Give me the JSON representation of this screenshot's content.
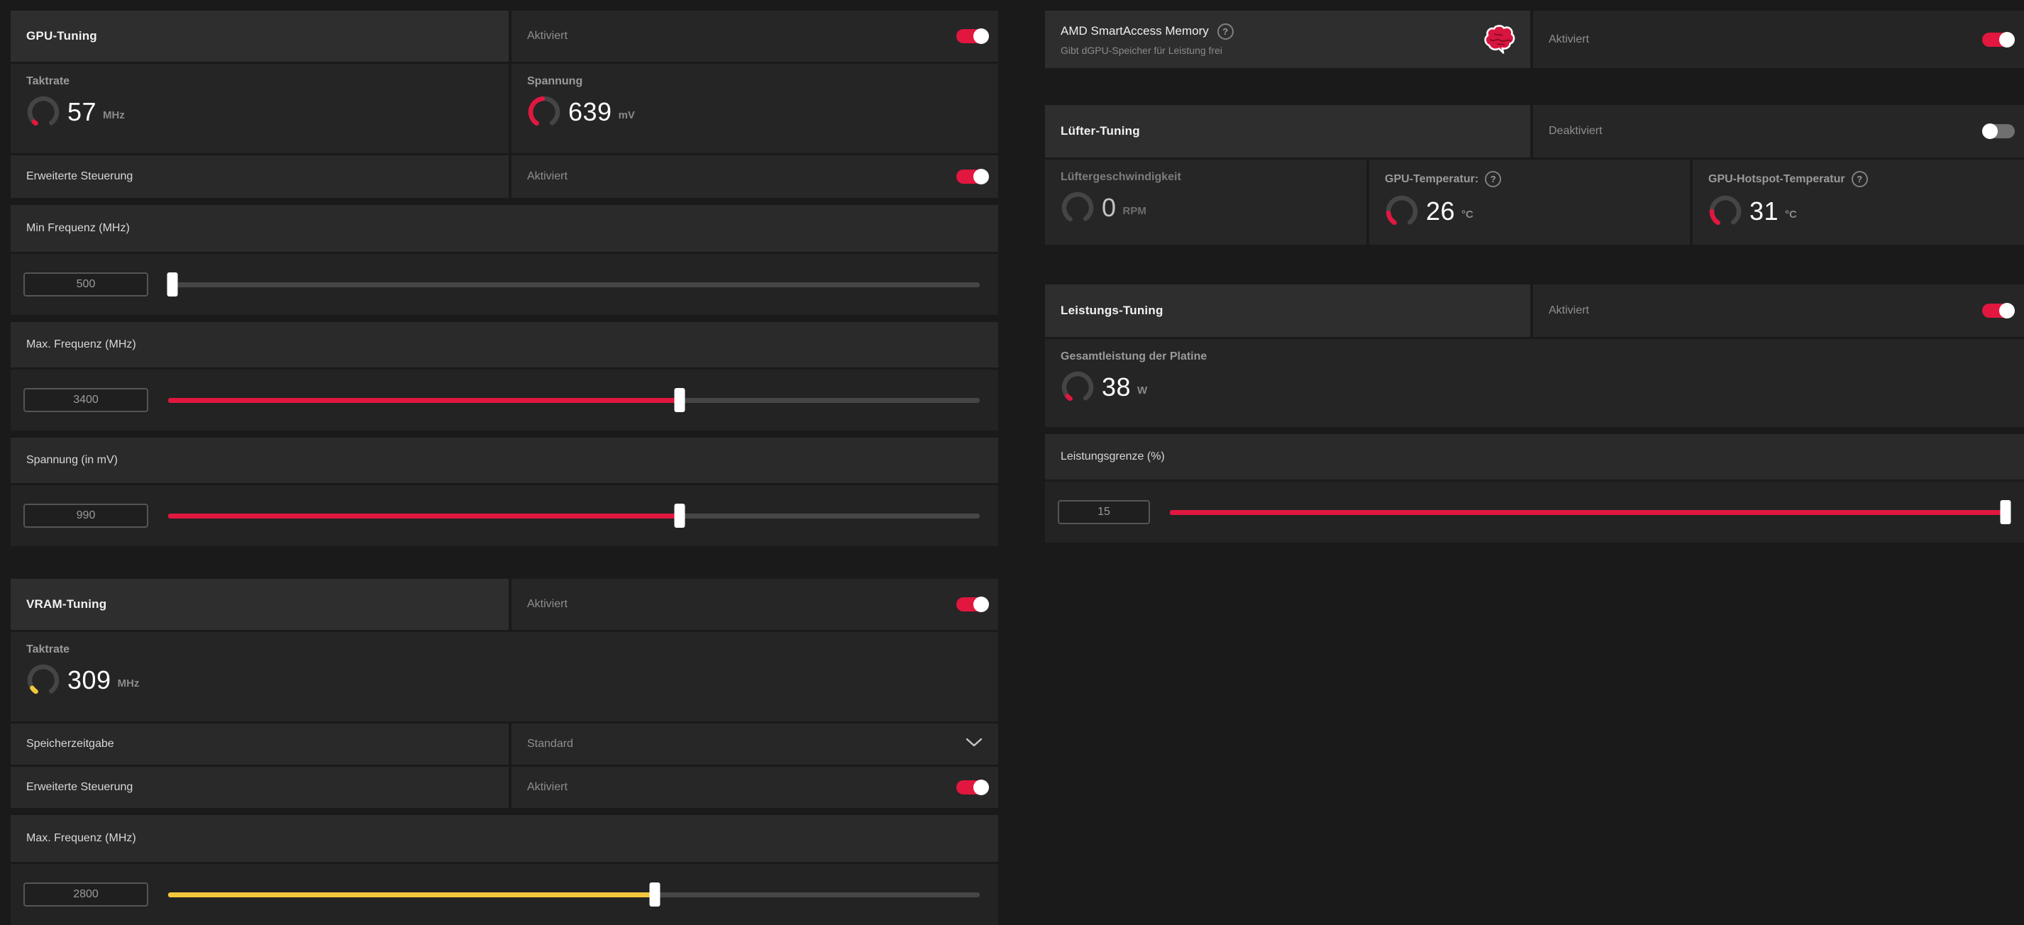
{
  "colors": {
    "red": "#e1173f",
    "yellow": "#f3c73c",
    "toggle_off": "#6f6f6f"
  },
  "icons": {
    "help": "?"
  },
  "gpu": {
    "title": "GPU-Tuning",
    "status": "Aktiviert",
    "enabled": true,
    "clock": {
      "label": "Taktrate",
      "value": "57",
      "unit": "MHz",
      "fill_pct": 3,
      "color": "red"
    },
    "voltage": {
      "label": "Spannung",
      "value": "639",
      "unit": "mV",
      "fill_pct": 48,
      "color": "red"
    },
    "advanced": {
      "label": "Erweiterte Steuerung",
      "status": "Aktiviert",
      "enabled": true
    },
    "min_freq": {
      "label": "Min Frequenz (MHz)",
      "value": "500",
      "fill_pct": 0.5,
      "color": "red"
    },
    "max_freq": {
      "label": "Max. Frequenz (MHz)",
      "value": "3400",
      "fill_pct": 63,
      "color": "red"
    },
    "voltage_slider": {
      "label": "Spannung (in mV)",
      "value": "990",
      "fill_pct": 63,
      "color": "red"
    }
  },
  "vram": {
    "title": "VRAM-Tuning",
    "status": "Aktiviert",
    "enabled": true,
    "clock": {
      "label": "Taktrate",
      "value": "309",
      "unit": "MHz",
      "fill_pct": 7,
      "color": "yellow"
    },
    "memory_timing": {
      "label": "Speicherzeitgabe",
      "value": "Standard"
    },
    "advanced": {
      "label": "Erweiterte Steuerung",
      "status": "Aktiviert",
      "enabled": true
    },
    "max_freq": {
      "label": "Max. Frequenz (MHz)",
      "value": "2800",
      "fill_pct": 60,
      "color": "yellow"
    }
  },
  "smart_access": {
    "title": "AMD SmartAccess Memory",
    "subtitle": "Gibt dGPU-Speicher für Leistung frei",
    "status": "Aktiviert",
    "enabled": true
  },
  "fan": {
    "title": "Lüfter-Tuning",
    "status": "Deaktiviert",
    "enabled": false,
    "speed": {
      "label": "Lüftergeschwindigkeit",
      "value": "0",
      "unit": "RPM",
      "fill_pct": 0,
      "color": "red"
    },
    "gpu_temp": {
      "label": "GPU-Temperatur:",
      "value": "26",
      "unit": "°C",
      "fill_pct": 17,
      "color": "red"
    },
    "hotspot_temp": {
      "label": "GPU-Hotspot-Temperatur",
      "value": "31",
      "unit": "°C",
      "fill_pct": 19,
      "color": "red"
    }
  },
  "power": {
    "title": "Leistungs-Tuning",
    "status": "Aktiviert",
    "enabled": true,
    "board_power": {
      "label": "Gesamtleistung der Platine",
      "value": "38",
      "unit": "W",
      "fill_pct": 5,
      "color": "red"
    },
    "power_limit": {
      "label": "Leistungsgrenze (%)",
      "value": "15",
      "fill_pct": 100,
      "color": "red"
    }
  }
}
